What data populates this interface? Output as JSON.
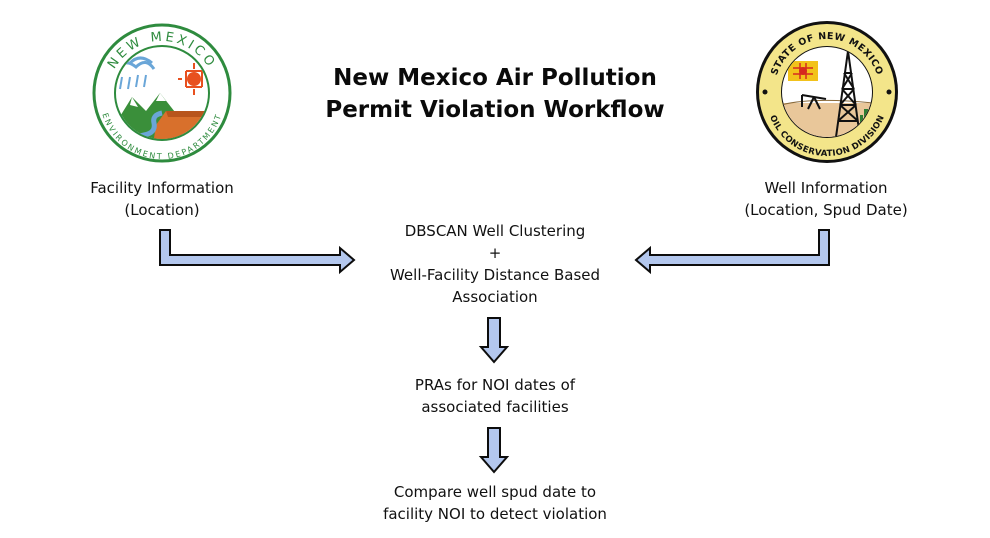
{
  "title": {
    "line1": "New Mexico Air Pollution",
    "line2": "Permit Violation Workflow"
  },
  "logos": {
    "left": {
      "icon": "new-mexico-environment-department-seal",
      "top_text": "NEW MEXICO",
      "bottom_text": "ENVIRONMENT DEPARTMENT",
      "colors": {
        "ring": "#2e8b3e",
        "mountain": "#3a8f3a",
        "mesa": "#d8702c",
        "sun": "#e8501f",
        "river": "#6aa6d8"
      }
    },
    "right": {
      "icon": "oil-conservation-division-seal",
      "top_text": "STATE OF NEW MEXICO",
      "bottom_text": "OIL CONSERVATION DIVISION",
      "colors": {
        "ring": "#f3e58a",
        "border": "#111111",
        "zia": "#d62a1f",
        "flag": "#f2c21b",
        "sky": "#ffffff",
        "ground": "#e9c79a",
        "cactus": "#2e7d32"
      }
    }
  },
  "nodes": {
    "facility": {
      "line1": "Facility Information",
      "line2": "(Location)"
    },
    "well": {
      "line1": "Well Information",
      "line2": "(Location, Spud Date)"
    },
    "clustering": {
      "line1": "DBSCAN Well Clustering",
      "line2": "+",
      "line3": "Well-Facility Distance Based",
      "line4": "Association"
    },
    "pra": {
      "line1": "PRAs for NOI dates of",
      "line2": "associated facilities"
    },
    "compare": {
      "line1": "Compare well spud date to",
      "line2": "facility NOI to detect violation"
    }
  },
  "arrows": {
    "fill": "#b3c7ee",
    "stroke": "#0d0d0d"
  }
}
